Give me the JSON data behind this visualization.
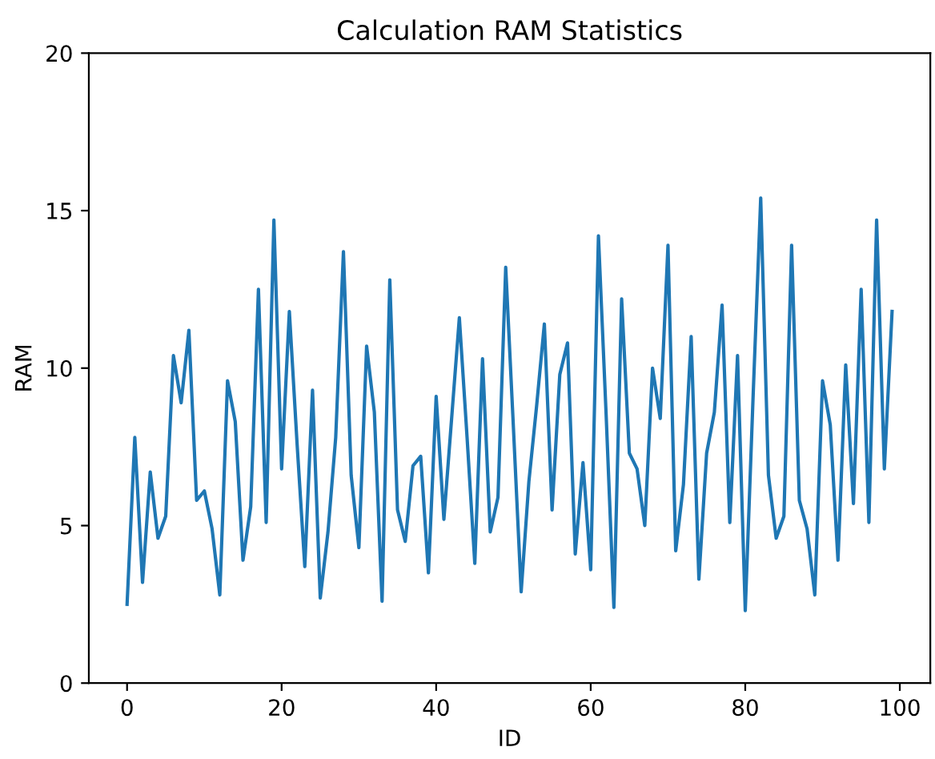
{
  "chart_data": {
    "type": "line",
    "title": "Calculation RAM Statistics",
    "xlabel": "ID",
    "ylabel": "RAM",
    "x": [
      0,
      1,
      2,
      3,
      4,
      5,
      6,
      7,
      8,
      9,
      10,
      11,
      12,
      13,
      14,
      15,
      16,
      17,
      18,
      19,
      20,
      21,
      22,
      23,
      24,
      25,
      26,
      27,
      28,
      29,
      30,
      31,
      32,
      33,
      34,
      35,
      36,
      37,
      38,
      39,
      40,
      41,
      42,
      43,
      44,
      45,
      46,
      47,
      48,
      49,
      50,
      51,
      52,
      53,
      54,
      55,
      56,
      57,
      58,
      59,
      60,
      61,
      62,
      63,
      64,
      65,
      66,
      67,
      68,
      69,
      70,
      71,
      72,
      73,
      74,
      75,
      76,
      77,
      78,
      79,
      80,
      81,
      82,
      83,
      84,
      85,
      86,
      87,
      88,
      89,
      90,
      91,
      92,
      93,
      94,
      95,
      96,
      97,
      98,
      99
    ],
    "series": [
      {
        "color": "#1f77b4",
        "values": [
          2.5,
          7.8,
          3.2,
          6.7,
          4.6,
          5.3,
          10.4,
          8.9,
          11.2,
          5.8,
          6.1,
          4.9,
          2.8,
          9.6,
          8.3,
          3.9,
          5.6,
          12.5,
          5.1,
          14.7,
          6.8,
          11.8,
          7.6,
          3.7,
          9.3,
          2.7,
          4.8,
          7.8,
          13.7,
          6.6,
          4.3,
          10.7,
          8.6,
          2.6,
          12.8,
          5.5,
          4.5,
          6.9,
          7.2,
          3.5,
          9.1,
          5.2,
          8.4,
          11.6,
          7.8,
          3.8,
          10.3,
          4.8,
          5.9,
          13.2,
          8.1,
          2.9,
          6.4,
          8.8,
          11.4,
          5.5,
          9.8,
          10.8,
          4.1,
          7.0,
          3.6,
          14.2,
          8.5,
          2.4,
          12.2,
          7.3,
          6.8,
          5.0,
          10.0,
          8.4,
          13.9,
          4.2,
          6.3,
          11.0,
          3.3,
          7.3,
          8.6,
          12.0,
          5.1,
          10.4,
          2.3,
          9.0,
          15.4,
          6.6,
          4.6,
          5.3,
          13.9,
          5.8,
          4.9,
          2.8,
          9.6,
          8.2,
          3.9,
          10.1,
          5.7,
          12.5,
          5.1,
          14.7,
          6.8,
          11.8
        ]
      }
    ],
    "xlim": [
      -4.95,
      103.95
    ],
    "ylim": [
      0,
      20
    ],
    "xticks": [
      0,
      20,
      40,
      60,
      80,
      100
    ],
    "yticks": [
      0,
      5,
      10,
      15,
      20
    ],
    "grid": false,
    "marker": "none",
    "line_style": "solid"
  }
}
